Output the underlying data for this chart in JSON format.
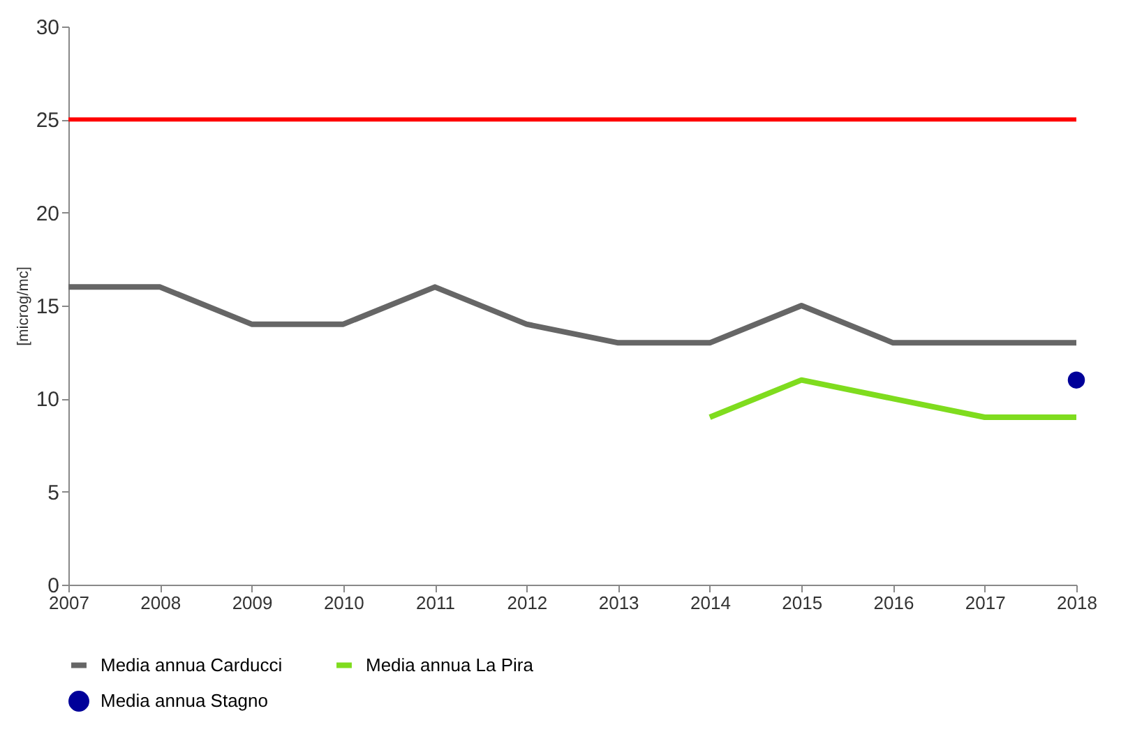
{
  "chart_data": {
    "type": "line",
    "ylabel": "[microg/mc]",
    "xlim": [
      2007,
      2018
    ],
    "xticks": [
      2007,
      2008,
      2009,
      2010,
      2011,
      2012,
      2013,
      2014,
      2015,
      2016,
      2017,
      2018
    ],
    "ylim": [
      0,
      30
    ],
    "yticks": [
      0,
      5,
      10,
      15,
      20,
      25,
      30
    ],
    "grid": false,
    "legend": "bottom",
    "line_style": "solid",
    "series": [
      {
        "name": "Media annua Carducci",
        "color": "#666666",
        "x": [
          2007,
          2008,
          2009,
          2010,
          2011,
          2012,
          2013,
          2014,
          2015,
          2016,
          2017,
          2018
        ],
        "values": [
          16,
          16,
          14,
          14,
          16,
          14,
          13,
          13,
          15,
          13,
          13,
          13
        ]
      },
      {
        "name": "Media annua La Pira",
        "color": "#7fdc1e",
        "x": [
          2014,
          2015,
          2016,
          2017,
          2018
        ],
        "values": [
          9,
          11,
          10,
          9,
          9
        ]
      },
      {
        "name": "Media annua Stagno",
        "type": "scatter",
        "marker": "circle",
        "color": "#000099",
        "x": [
          2018
        ],
        "values": [
          11
        ]
      }
    ],
    "ref_lines": [
      {
        "axis": "y",
        "value": 25,
        "color": "#ff0000",
        "line_style": "solid"
      }
    ]
  }
}
